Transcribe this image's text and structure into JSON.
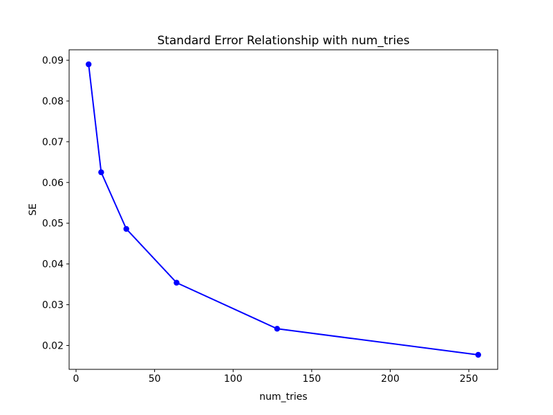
{
  "figure": {
    "background_color": "#ffffff"
  },
  "chart_data": {
    "type": "line",
    "title": "Standard Error Relationship with num_tries",
    "xlabel": "num_tries",
    "ylabel": "SE",
    "x": [
      8,
      16,
      32,
      64,
      128,
      256
    ],
    "y": [
      0.089,
      0.0625,
      0.0486,
      0.0354,
      0.0241,
      0.0177
    ],
    "xticks": [
      0,
      50,
      100,
      150,
      200,
      250
    ],
    "yticks": [
      0.02,
      0.03,
      0.04,
      0.05,
      0.06,
      0.07,
      0.08,
      0.09
    ],
    "xlim": [
      -4.4,
      268.4
    ],
    "ylim": [
      0.014135,
      0.092565
    ],
    "line_color": "#0000ff",
    "marker": "circle",
    "grid": false,
    "legend_position": "none",
    "spine_color": "#000000"
  }
}
